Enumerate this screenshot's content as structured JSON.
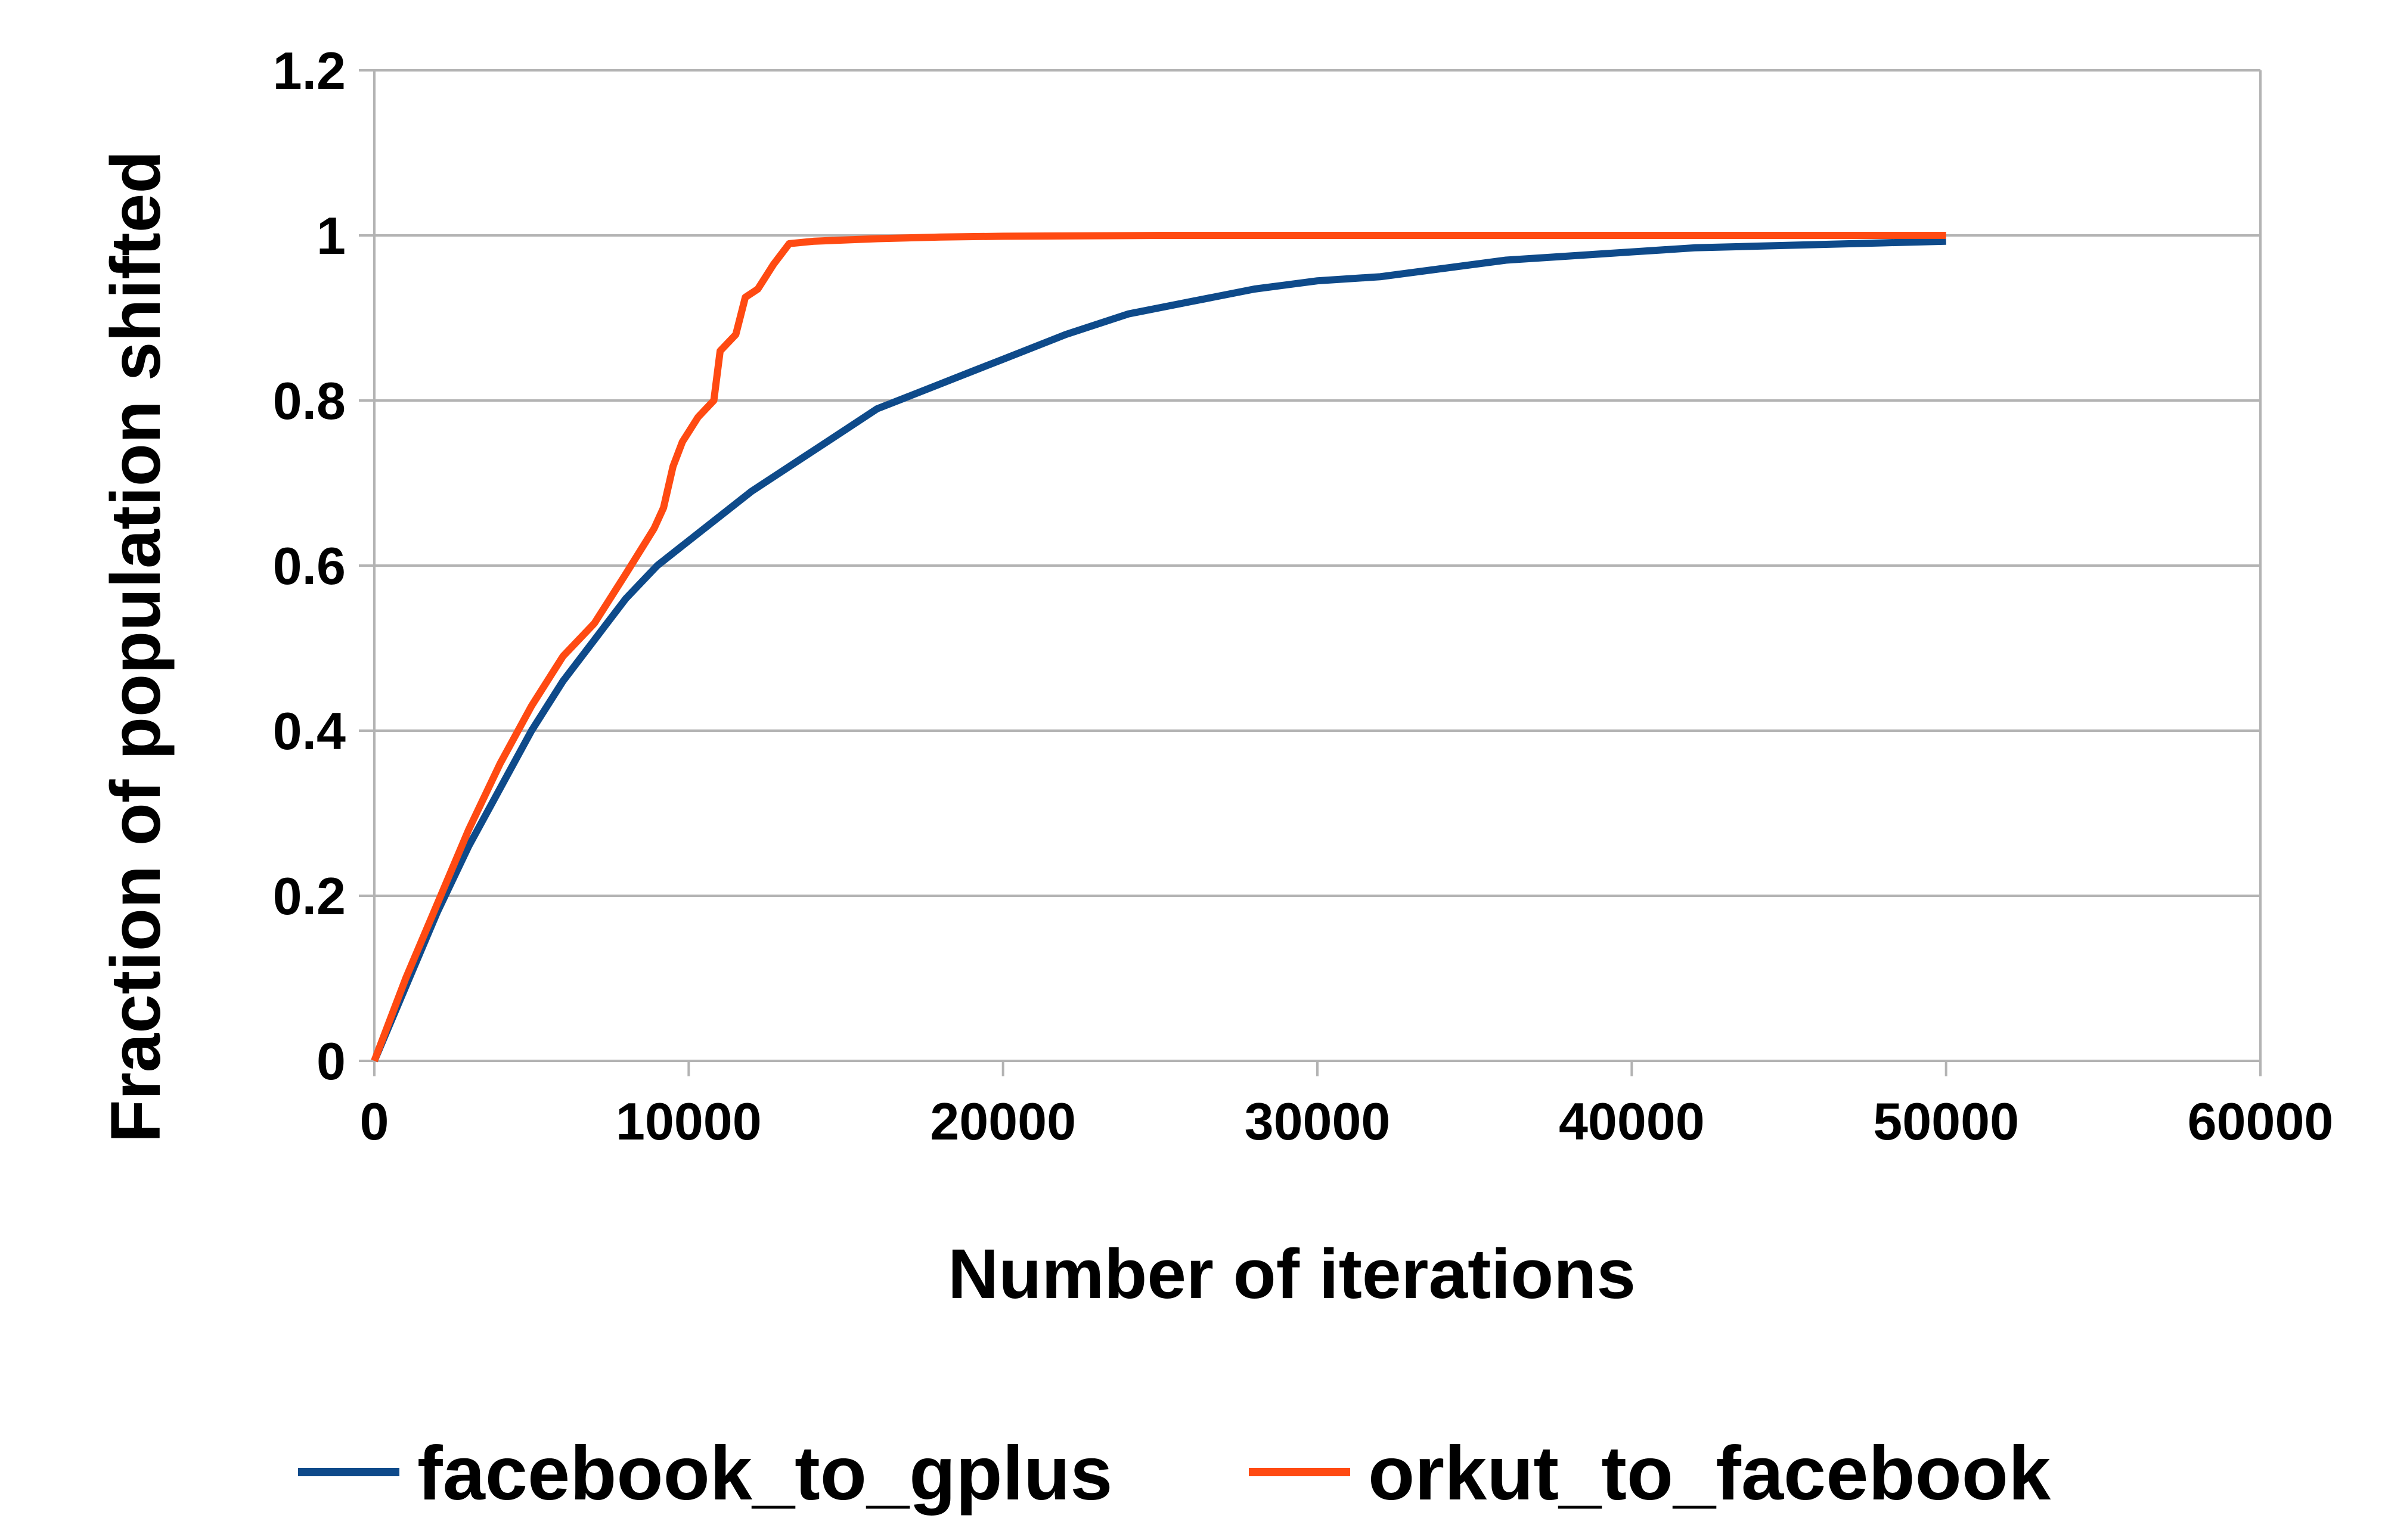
{
  "chart_data": {
    "type": "line",
    "title": "",
    "xlabel": "Number of iterations",
    "ylabel": "Fraction of population shifted",
    "xlim": [
      0,
      60000
    ],
    "ylim": [
      0,
      1.2
    ],
    "x_ticks": [
      0,
      10000,
      20000,
      30000,
      40000,
      50000,
      60000
    ],
    "x_tick_labels": [
      "0",
      "10000",
      "20000",
      "30000",
      "40000",
      "50000",
      "60000"
    ],
    "y_ticks": [
      0,
      0.2,
      0.4,
      0.6,
      0.8,
      1,
      1.2
    ],
    "y_tick_labels": [
      "0",
      "0.2",
      "0.4",
      "0.6",
      "0.8",
      "1",
      "1.2"
    ],
    "grid": "horizontal",
    "legend_position": "bottom",
    "series": [
      {
        "name": "facebook_to_gplus",
        "color": "#0e4a8a",
        "x": [
          0,
          1000,
          2000,
          3000,
          4000,
          5000,
          6000,
          7000,
          8000,
          9000,
          10000,
          11000,
          12000,
          13000,
          14000,
          15000,
          16000,
          17000,
          18000,
          19000,
          20000,
          22000,
          24000,
          26000,
          28000,
          30000,
          32000,
          34000,
          36000,
          38000,
          40000,
          42000,
          44000,
          46000,
          48000,
          50000
        ],
        "y": [
          0,
          0.09,
          0.18,
          0.26,
          0.33,
          0.4,
          0.46,
          0.51,
          0.56,
          0.6,
          0.63,
          0.66,
          0.69,
          0.715,
          0.74,
          0.765,
          0.79,
          0.805,
          0.82,
          0.835,
          0.85,
          0.88,
          0.905,
          0.92,
          0.935,
          0.945,
          0.95,
          0.96,
          0.97,
          0.975,
          0.98,
          0.985,
          0.987,
          0.989,
          0.991,
          0.993
        ]
      },
      {
        "name": "orkut_to_facebook",
        "color": "#ff4a12",
        "x": [
          0,
          1000,
          2000,
          3000,
          4000,
          5000,
          6000,
          7000,
          8000,
          8900,
          9200,
          9500,
          9800,
          10300,
          10800,
          11000,
          11500,
          11800,
          12200,
          12700,
          13200,
          14000,
          16000,
          18000,
          20000,
          25000,
          30000,
          40000,
          50000
        ],
        "y": [
          0,
          0.1,
          0.19,
          0.28,
          0.36,
          0.43,
          0.49,
          0.53,
          0.59,
          0.645,
          0.67,
          0.72,
          0.75,
          0.78,
          0.8,
          0.86,
          0.88,
          0.925,
          0.935,
          0.965,
          0.99,
          0.993,
          0.996,
          0.998,
          0.999,
          1.0,
          1.0,
          1.0,
          1.0
        ]
      }
    ]
  }
}
